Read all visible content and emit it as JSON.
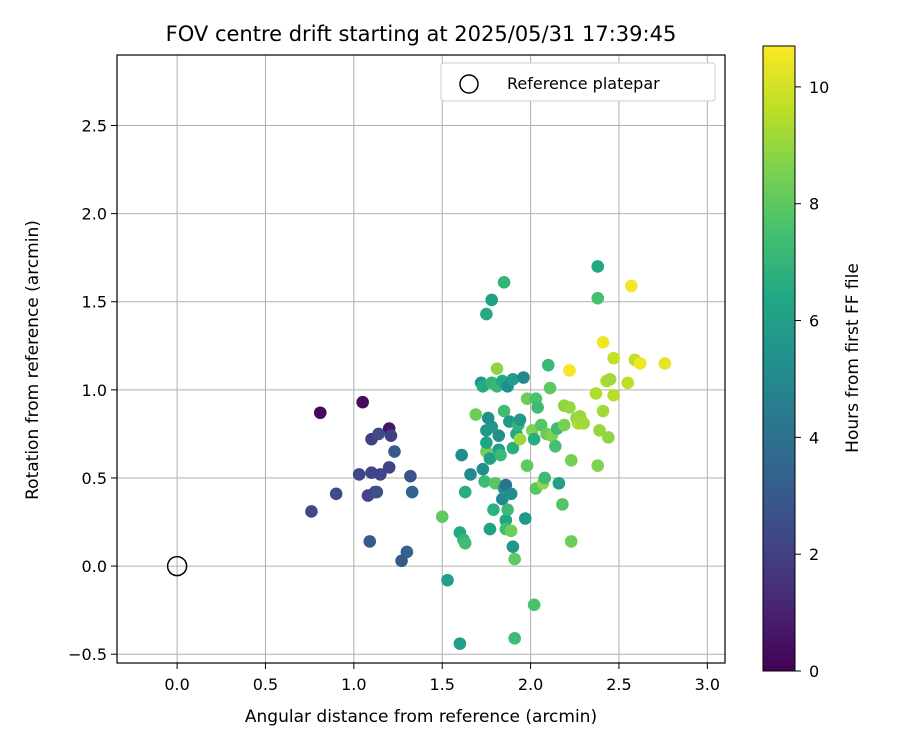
{
  "chart_data": {
    "type": "scatter",
    "title": "FOV centre drift starting at 2025/05/31 17:39:45",
    "xlabel": "Angular distance from reference (arcmin)",
    "ylabel": "Rotation from reference (arcmin)",
    "xlim": [
      -0.34,
      3.1
    ],
    "ylim": [
      -0.55,
      2.9
    ],
    "xticks": [
      "0.0",
      "0.5",
      "1.0",
      "1.5",
      "2.0",
      "2.5",
      "3.0"
    ],
    "yticks": [
      "−0.5",
      "0.0",
      "0.5",
      "1.0",
      "1.5",
      "2.0",
      "2.5"
    ],
    "grid": true,
    "legend": {
      "placement": "top-right",
      "entries": [
        "Reference platepar"
      ]
    },
    "colorbar": {
      "label": "Hours from first FF file",
      "range": [
        0,
        10.7
      ],
      "ticks": [
        "0",
        "2",
        "4",
        "6",
        "8",
        "10"
      ],
      "colormap": "viridis"
    },
    "reference_point": {
      "x": 0.0,
      "y": 0.0
    },
    "series": [
      {
        "points": [
          {
            "x": 0.81,
            "y": 0.87,
            "h": 0.2
          },
          {
            "x": 1.05,
            "y": 0.93,
            "h": 0.3
          },
          {
            "x": 1.2,
            "y": 0.78,
            "h": 0.6
          },
          {
            "x": 0.76,
            "y": 0.31,
            "h": 2.3
          },
          {
            "x": 0.9,
            "y": 0.41,
            "h": 2.5
          },
          {
            "x": 1.03,
            "y": 0.52,
            "h": 2.2
          },
          {
            "x": 1.08,
            "y": 0.4,
            "h": 2.1
          },
          {
            "x": 1.1,
            "y": 0.53,
            "h": 2.2
          },
          {
            "x": 1.1,
            "y": 0.72,
            "h": 2.0
          },
          {
            "x": 1.12,
            "y": 0.42,
            "h": 2.1
          },
          {
            "x": 1.14,
            "y": 0.75,
            "h": 2.4
          },
          {
            "x": 1.15,
            "y": 0.52,
            "h": 2.2
          },
          {
            "x": 1.2,
            "y": 0.56,
            "h": 2.1
          },
          {
            "x": 1.21,
            "y": 0.74,
            "h": 2.0
          },
          {
            "x": 1.23,
            "y": 0.65,
            "h": 3.0
          },
          {
            "x": 1.09,
            "y": 0.14,
            "h": 3.1
          },
          {
            "x": 1.27,
            "y": 0.03,
            "h": 3.0
          },
          {
            "x": 1.3,
            "y": 0.08,
            "h": 3.3
          },
          {
            "x": 1.32,
            "y": 0.51,
            "h": 2.7
          },
          {
            "x": 1.33,
            "y": 0.42,
            "h": 3.4
          },
          {
            "x": 1.13,
            "y": 0.42,
            "h": 2.6
          },
          {
            "x": 1.5,
            "y": 0.28,
            "h": 8.0
          },
          {
            "x": 1.53,
            "y": -0.08,
            "h": 6.0
          },
          {
            "x": 1.6,
            "y": -0.44,
            "h": 5.9
          },
          {
            "x": 1.6,
            "y": 0.19,
            "h": 6.4
          },
          {
            "x": 1.62,
            "y": 0.15,
            "h": 7.0
          },
          {
            "x": 1.63,
            "y": 0.13,
            "h": 7.4
          },
          {
            "x": 1.61,
            "y": 0.63,
            "h": 5.1
          },
          {
            "x": 1.63,
            "y": 0.42,
            "h": 6.6
          },
          {
            "x": 1.66,
            "y": 0.52,
            "h": 5.0
          },
          {
            "x": 1.69,
            "y": 0.86,
            "h": 8.3
          },
          {
            "x": 1.72,
            "y": 1.04,
            "h": 5.6
          },
          {
            "x": 1.73,
            "y": 1.02,
            "h": 6.5
          },
          {
            "x": 1.73,
            "y": 0.55,
            "h": 5.3
          },
          {
            "x": 1.74,
            "y": 0.48,
            "h": 7.3
          },
          {
            "x": 1.75,
            "y": 0.65,
            "h": 8.4
          },
          {
            "x": 1.75,
            "y": 0.77,
            "h": 5.7
          },
          {
            "x": 1.75,
            "y": 0.7,
            "h": 6.2
          },
          {
            "x": 1.75,
            "y": 1.43,
            "h": 6.5
          },
          {
            "x": 1.76,
            "y": 0.84,
            "h": 5.3
          },
          {
            "x": 1.77,
            "y": 0.61,
            "h": 6.0
          },
          {
            "x": 1.77,
            "y": 0.21,
            "h": 6.1
          },
          {
            "x": 1.78,
            "y": 1.51,
            "h": 6.1
          },
          {
            "x": 1.78,
            "y": 1.04,
            "h": 7.0
          },
          {
            "x": 1.78,
            "y": 0.79,
            "h": 5.6
          },
          {
            "x": 1.79,
            "y": 0.32,
            "h": 6.8
          },
          {
            "x": 1.8,
            "y": 0.47,
            "h": 7.9
          },
          {
            "x": 1.81,
            "y": 1.12,
            "h": 8.9
          },
          {
            "x": 1.81,
            "y": 1.02,
            "h": 7.1
          },
          {
            "x": 1.82,
            "y": 0.74,
            "h": 5.3
          },
          {
            "x": 1.82,
            "y": 0.66,
            "h": 5.9
          },
          {
            "x": 1.83,
            "y": 0.63,
            "h": 7.2
          },
          {
            "x": 1.84,
            "y": 0.38,
            "h": 5.0
          },
          {
            "x": 1.84,
            "y": 1.05,
            "h": 6.4
          },
          {
            "x": 1.85,
            "y": 0.88,
            "h": 7.4
          },
          {
            "x": 1.85,
            "y": 1.61,
            "h": 7.0
          },
          {
            "x": 1.85,
            "y": 0.44,
            "h": 5.6
          },
          {
            "x": 1.86,
            "y": 0.26,
            "h": 6.3
          },
          {
            "x": 1.86,
            "y": 0.46,
            "h": 4.2
          },
          {
            "x": 1.86,
            "y": 0.21,
            "h": 7.4
          },
          {
            "x": 1.87,
            "y": 0.32,
            "h": 7.2
          },
          {
            "x": 1.87,
            "y": 1.02,
            "h": 5.3
          },
          {
            "x": 1.88,
            "y": 0.82,
            "h": 5.8
          },
          {
            "x": 1.89,
            "y": 0.41,
            "h": 5.3
          },
          {
            "x": 1.89,
            "y": 0.2,
            "h": 8.3
          },
          {
            "x": 1.9,
            "y": 0.11,
            "h": 5.6
          },
          {
            "x": 1.9,
            "y": 0.67,
            "h": 6.7
          },
          {
            "x": 1.9,
            "y": 1.06,
            "h": 5.9
          },
          {
            "x": 1.91,
            "y": -0.41,
            "h": 7.3
          },
          {
            "x": 1.91,
            "y": 0.04,
            "h": 8.0
          },
          {
            "x": 1.92,
            "y": 0.75,
            "h": 6.4
          },
          {
            "x": 1.93,
            "y": 0.8,
            "h": 7.0
          },
          {
            "x": 1.94,
            "y": 0.83,
            "h": 5.7
          },
          {
            "x": 1.94,
            "y": 0.72,
            "h": 9.1
          },
          {
            "x": 1.96,
            "y": 1.07,
            "h": 5.0
          },
          {
            "x": 1.97,
            "y": 0.27,
            "h": 5.7
          },
          {
            "x": 1.98,
            "y": 0.57,
            "h": 8.0
          },
          {
            "x": 1.98,
            "y": 0.95,
            "h": 8.3
          },
          {
            "x": 2.01,
            "y": 0.77,
            "h": 8.6
          },
          {
            "x": 2.02,
            "y": 0.72,
            "h": 6.6
          },
          {
            "x": 2.02,
            "y": -0.22,
            "h": 7.6
          },
          {
            "x": 2.03,
            "y": 0.95,
            "h": 7.6
          },
          {
            "x": 2.03,
            "y": 0.44,
            "h": 7.9
          },
          {
            "x": 2.04,
            "y": 0.9,
            "h": 7.3
          },
          {
            "x": 2.06,
            "y": 0.8,
            "h": 7.8
          },
          {
            "x": 2.07,
            "y": 0.47,
            "h": 8.9
          },
          {
            "x": 2.08,
            "y": 0.5,
            "h": 7.2
          },
          {
            "x": 2.09,
            "y": 0.75,
            "h": 8.2
          },
          {
            "x": 2.1,
            "y": 1.14,
            "h": 7.1
          },
          {
            "x": 2.11,
            "y": 1.01,
            "h": 8.0
          },
          {
            "x": 2.12,
            "y": 0.74,
            "h": 8.6
          },
          {
            "x": 2.14,
            "y": 0.68,
            "h": 7.5
          },
          {
            "x": 2.15,
            "y": 0.78,
            "h": 7.3
          },
          {
            "x": 2.16,
            "y": 0.47,
            "h": 6.0
          },
          {
            "x": 2.18,
            "y": 0.35,
            "h": 7.8
          },
          {
            "x": 2.19,
            "y": 0.91,
            "h": 8.9
          },
          {
            "x": 2.19,
            "y": 0.8,
            "h": 8.5
          },
          {
            "x": 2.22,
            "y": 1.11,
            "h": 10.6
          },
          {
            "x": 2.22,
            "y": 0.9,
            "h": 9.0
          },
          {
            "x": 2.23,
            "y": 0.14,
            "h": 8.3
          },
          {
            "x": 2.23,
            "y": 0.6,
            "h": 8.5
          },
          {
            "x": 2.26,
            "y": 0.84,
            "h": 8.9
          },
          {
            "x": 2.27,
            "y": 0.81,
            "h": 9.3
          },
          {
            "x": 2.28,
            "y": 0.85,
            "h": 9.1
          },
          {
            "x": 2.3,
            "y": 0.81,
            "h": 9.2
          },
          {
            "x": 2.37,
            "y": 0.98,
            "h": 9.4
          },
          {
            "x": 2.38,
            "y": 1.7,
            "h": 6.4
          },
          {
            "x": 2.38,
            "y": 1.52,
            "h": 7.5
          },
          {
            "x": 2.38,
            "y": 0.57,
            "h": 8.6
          },
          {
            "x": 2.39,
            "y": 0.77,
            "h": 9.0
          },
          {
            "x": 2.41,
            "y": 0.88,
            "h": 9.2
          },
          {
            "x": 2.41,
            "y": 1.27,
            "h": 10.5
          },
          {
            "x": 2.43,
            "y": 1.05,
            "h": 9.3
          },
          {
            "x": 2.44,
            "y": 0.73,
            "h": 8.9
          },
          {
            "x": 2.45,
            "y": 1.06,
            "h": 9.2
          },
          {
            "x": 2.47,
            "y": 1.18,
            "h": 9.7
          },
          {
            "x": 2.47,
            "y": 0.97,
            "h": 9.5
          },
          {
            "x": 2.55,
            "y": 1.04,
            "h": 9.6
          },
          {
            "x": 2.57,
            "y": 1.59,
            "h": 10.6
          },
          {
            "x": 2.59,
            "y": 1.17,
            "h": 9.7
          },
          {
            "x": 2.62,
            "y": 1.15,
            "h": 10.5
          },
          {
            "x": 2.76,
            "y": 1.15,
            "h": 10.3
          }
        ]
      }
    ]
  }
}
